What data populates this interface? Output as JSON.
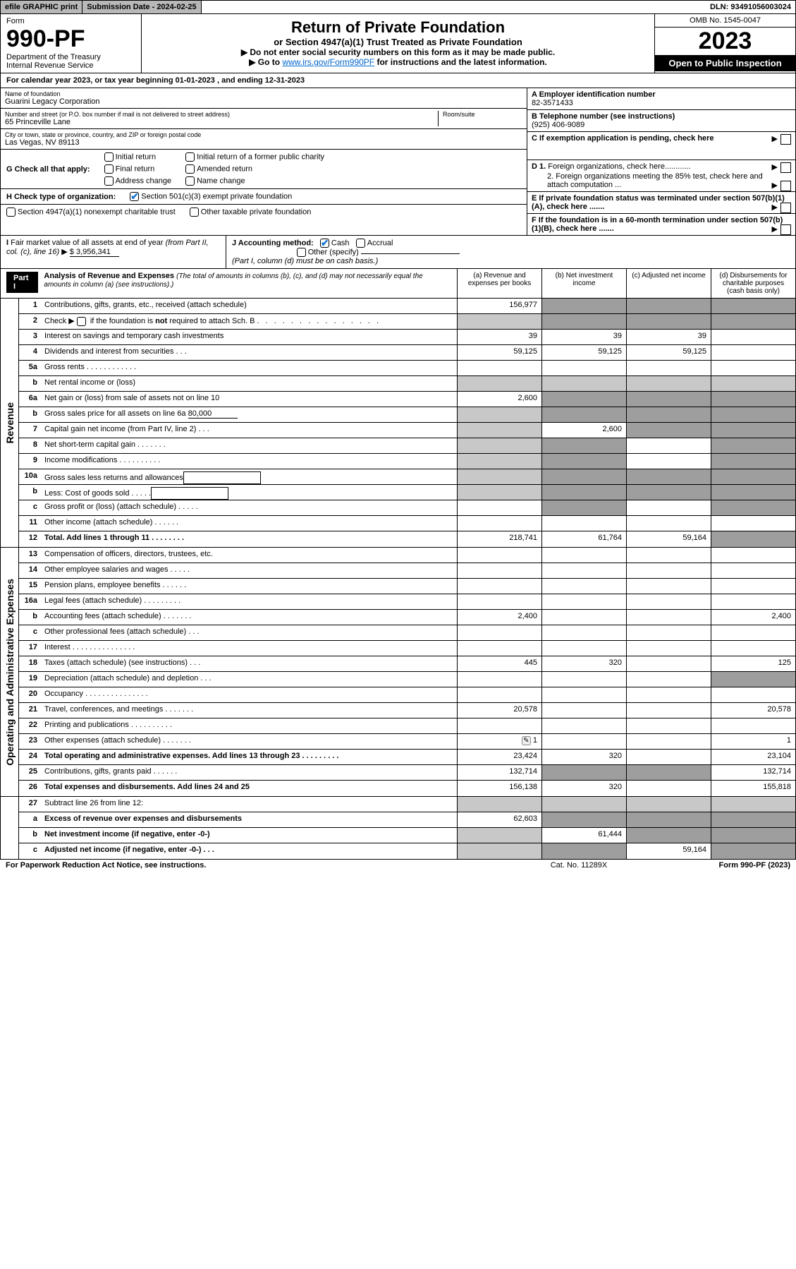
{
  "topBar": {
    "efile": "efile GRAPHIC print",
    "submission": "Submission Date - 2024-02-25",
    "dln": "DLN: 93491056003024"
  },
  "header": {
    "formWord": "Form",
    "formNum": "990-PF",
    "dept1": "Department of the Treasury",
    "dept2": "Internal Revenue Service",
    "title": "Return of Private Foundation",
    "sub": "or Section 4947(a)(1) Trust Treated as Private Foundation",
    "line1": "▶ Do not enter social security numbers on this form as it may be made public.",
    "line2a": "▶ Go to ",
    "line2link": "www.irs.gov/Form990PF",
    "line2b": " for instructions and the latest information.",
    "omb": "OMB No. 1545-0047",
    "year": "2023",
    "open": "Open to Public Inspection"
  },
  "calYear": "For calendar year 2023, or tax year beginning 01-01-2023                          , and ending 12-31-2023",
  "nameBlock": {
    "nameLabel": "Name of foundation",
    "name": "Guarini Legacy Corporation",
    "addrLabel": "Number and street (or P.O. box number if mail is not delivered to street address)",
    "addr": "65 Princeville Lane",
    "roomLabel": "Room/suite",
    "cityLabel": "City or town, state or province, country, and ZIP or foreign postal code",
    "city": "Las Vegas, NV  89113"
  },
  "rightInfo": {
    "A": "A Employer identification number",
    "Aval": "82-3571433",
    "B": "B Telephone number (see instructions)",
    "Bval": "(925) 406-9089",
    "C": "C If exemption application is pending, check here",
    "D1": "D 1. Foreign organizations, check here............",
    "D2": "2. Foreign organizations meeting the 85% test, check here and attach computation ...",
    "E": "E  If private foundation status was terminated under section 507(b)(1)(A), check here .......",
    "F": "F  If the foundation is in a 60-month termination under section 507(b)(1)(B), check here .......",
    "arrows": "▶"
  },
  "gBlock": {
    "label": "G Check all that apply:",
    "o1": "Initial return",
    "o2": "Final return",
    "o3": "Address change",
    "o4": "Initial return of a former public charity",
    "o5": "Amended return",
    "o6": "Name change"
  },
  "hBlock": {
    "label": "H Check type of organization:",
    "o1": "Section 501(c)(3) exempt private foundation",
    "o2": "Section 4947(a)(1) nonexempt charitable trust",
    "o3": "Other taxable private foundation"
  },
  "iBlock": {
    "label": "I Fair market value of all assets at end of year (from Part II, col. (c), line 16) ▶",
    "val": "$  3,956,341"
  },
  "jBlock": {
    "label": "J Accounting method:",
    "o1": "Cash",
    "o2": "Accrual",
    "o3": "Other (specify)",
    "note": "(Part I, column (d) must be on cash basis.)"
  },
  "part1": {
    "badge": "Part I",
    "title": "Analysis of Revenue and Expenses",
    "note": " (The total of amounts in columns (b), (c), and (d) may not necessarily equal the amounts in column (a) (see instructions).)",
    "colA": "(a)   Revenue and expenses per books",
    "colB": "(b)   Net investment income",
    "colC": "(c)  Adjusted net income",
    "colD": "(d)  Disbursements for charitable purposes (cash basis only)"
  },
  "sideRevenue": "Revenue",
  "sideExpenses": "Operating and Administrative Expenses",
  "rows": {
    "r1": {
      "n": "1",
      "d": "Contributions, gifts, grants, etc., received (attach schedule)",
      "a": "156,977"
    },
    "r2": {
      "n": "2",
      "d": "Check ▶ ☐ if the foundation is not required to attach Sch. B"
    },
    "r3": {
      "n": "3",
      "d": "Interest on savings and temporary cash investments",
      "a": "39",
      "b": "39",
      "c": "39"
    },
    "r4": {
      "n": "4",
      "d": "Dividends and interest from securities   .  .  .",
      "a": "59,125",
      "b": "59,125",
      "c": "59,125"
    },
    "r5a": {
      "n": "5a",
      "d": "Gross rents   .  .  .  .  .  .  .  .  .  .  .  ."
    },
    "r5b": {
      "n": "b",
      "d": "Net rental income or (loss)"
    },
    "r6a": {
      "n": "6a",
      "d": "Net gain or (loss) from sale of assets not on line 10",
      "a": "2,600"
    },
    "r6b": {
      "n": "b",
      "d": "Gross sales price for all assets on line 6a",
      "val": "80,000"
    },
    "r7": {
      "n": "7",
      "d": "Capital gain net income (from Part IV, line 2)   .  .  .",
      "b": "2,600"
    },
    "r8": {
      "n": "8",
      "d": "Net short-term capital gain   .  .  .  .  .  .  ."
    },
    "r9": {
      "n": "9",
      "d": "Income modifications  .  .  .  .  .  .  .  .  .  ."
    },
    "r10a": {
      "n": "10a",
      "d": "Gross sales less returns and allowances"
    },
    "r10b": {
      "n": "b",
      "d": "Less: Cost of goods sold    .  .  .  .  ."
    },
    "r10c": {
      "n": "c",
      "d": "Gross profit or (loss) (attach schedule)     .  .  .  .  ."
    },
    "r11": {
      "n": "11",
      "d": "Other income (attach schedule)    .  .  .  .  .  ."
    },
    "r12": {
      "n": "12",
      "d": "Total. Add lines 1 through 11   .  .  .  .  .  .  .  .",
      "a": "218,741",
      "b": "61,764",
      "c": "59,164"
    },
    "r13": {
      "n": "13",
      "d": "Compensation of officers, directors, trustees, etc."
    },
    "r14": {
      "n": "14",
      "d": "Other employee salaries and wages    .  .  .  .  ."
    },
    "r15": {
      "n": "15",
      "d": "Pension plans, employee benefits  .  .  .  .  .  ."
    },
    "r16a": {
      "n": "16a",
      "d": "Legal fees (attach schedule) .  .  .  .  .  .  .  .  ."
    },
    "r16b": {
      "n": "b",
      "d": "Accounting fees (attach schedule) .  .  .  .  .  .  .",
      "a": "2,400",
      "d2": "2,400"
    },
    "r16c": {
      "n": "c",
      "d": "Other professional fees (attach schedule)    .  .  ."
    },
    "r17": {
      "n": "17",
      "d": "Interest  .  .  .  .  .  .  .  .  .  .  .  .  .  .  ."
    },
    "r18": {
      "n": "18",
      "d": "Taxes (attach schedule) (see instructions)     .  .  .",
      "a": "445",
      "b": "320",
      "d2": "125"
    },
    "r19": {
      "n": "19",
      "d": "Depreciation (attach schedule) and depletion    .  .  ."
    },
    "r20": {
      "n": "20",
      "d": "Occupancy .  .  .  .  .  .  .  .  .  .  .  .  .  .  ."
    },
    "r21": {
      "n": "21",
      "d": "Travel, conferences, and meetings .  .  .  .  .  .  .",
      "a": "20,578",
      "d2": "20,578"
    },
    "r22": {
      "n": "22",
      "d": "Printing and publications .  .  .  .  .  .  .  .  .  ."
    },
    "r23": {
      "n": "23",
      "d": "Other expenses (attach schedule) .  .  .  .  .  .  .",
      "a": "1",
      "d2": "1",
      "icon": "✎"
    },
    "r24": {
      "n": "24",
      "d": "Total operating and administrative expenses. Add lines 13 through 23   .  .  .  .  .  .  .  .  .",
      "a": "23,424",
      "b": "320",
      "d2": "23,104"
    },
    "r25": {
      "n": "25",
      "d": "Contributions, gifts, grants paid     .  .  .  .  .  .",
      "a": "132,714",
      "d2": "132,714"
    },
    "r26": {
      "n": "26",
      "d": "Total expenses and disbursements. Add lines 24 and 25",
      "a": "156,138",
      "b": "320",
      "d2": "155,818"
    },
    "r27": {
      "n": "27",
      "d": "Subtract line 26 from line 12:"
    },
    "r27a": {
      "n": "a",
      "d": "Excess of revenue over expenses and disbursements",
      "a": "62,603"
    },
    "r27b": {
      "n": "b",
      "d": "Net investment income (if negative, enter -0-)",
      "b": "61,444"
    },
    "r27c": {
      "n": "c",
      "d": "Adjusted net income (if negative, enter -0-)    .  .  .",
      "c": "59,164"
    }
  },
  "footer": {
    "l": "For Paperwork Reduction Act Notice, see instructions.",
    "c": "Cat. No. 11289X",
    "r": "Form 990-PF (2023)"
  },
  "colors": {
    "darkgrey": "#9e9e9e",
    "lightgrey": "#c8c8c8"
  }
}
